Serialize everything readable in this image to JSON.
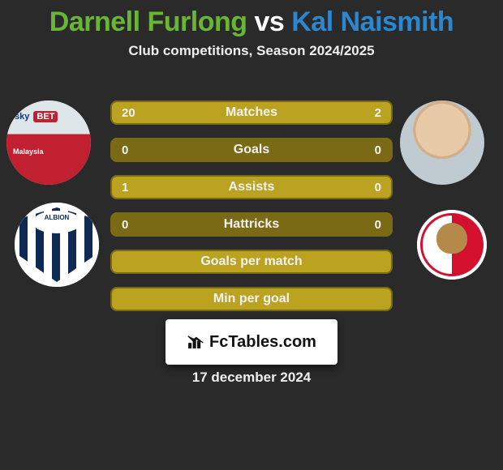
{
  "title": {
    "player1": "Darnell Furlong",
    "vs": "vs",
    "player2": "Kal Naismith",
    "color1": "#69b536",
    "color_vs": "#ffffff",
    "color2": "#2a87d0"
  },
  "subtitle": "Club competitions, Season 2024/2025",
  "bars": {
    "bar_bg": "#7a6a16",
    "bar_fill": "#bba321",
    "text_color": "#f2f2f2",
    "rows": [
      {
        "label": "Matches",
        "left": "20",
        "right": "2",
        "left_pct": 91,
        "right_pct": 9
      },
      {
        "label": "Goals",
        "left": "0",
        "right": "0",
        "left_pct": 0,
        "right_pct": 0
      },
      {
        "label": "Assists",
        "left": "1",
        "right": "0",
        "left_pct": 100,
        "right_pct": 0
      },
      {
        "label": "Hattricks",
        "left": "0",
        "right": "0",
        "left_pct": 0,
        "right_pct": 0
      },
      {
        "label": "Goals per match",
        "left": "",
        "right": "",
        "left_pct": 100,
        "right_pct": 0,
        "full": true
      },
      {
        "label": "Min per goal",
        "left": "",
        "right": "",
        "left_pct": 100,
        "right_pct": 0,
        "full": true
      }
    ]
  },
  "footer_brand": "FcTables.com",
  "date": "17 december 2024",
  "players": {
    "left_name": "Darnell Furlong",
    "right_name": "Kal Naismith",
    "left_club": "West Bromwich Albion",
    "right_club": "Bristol City"
  }
}
